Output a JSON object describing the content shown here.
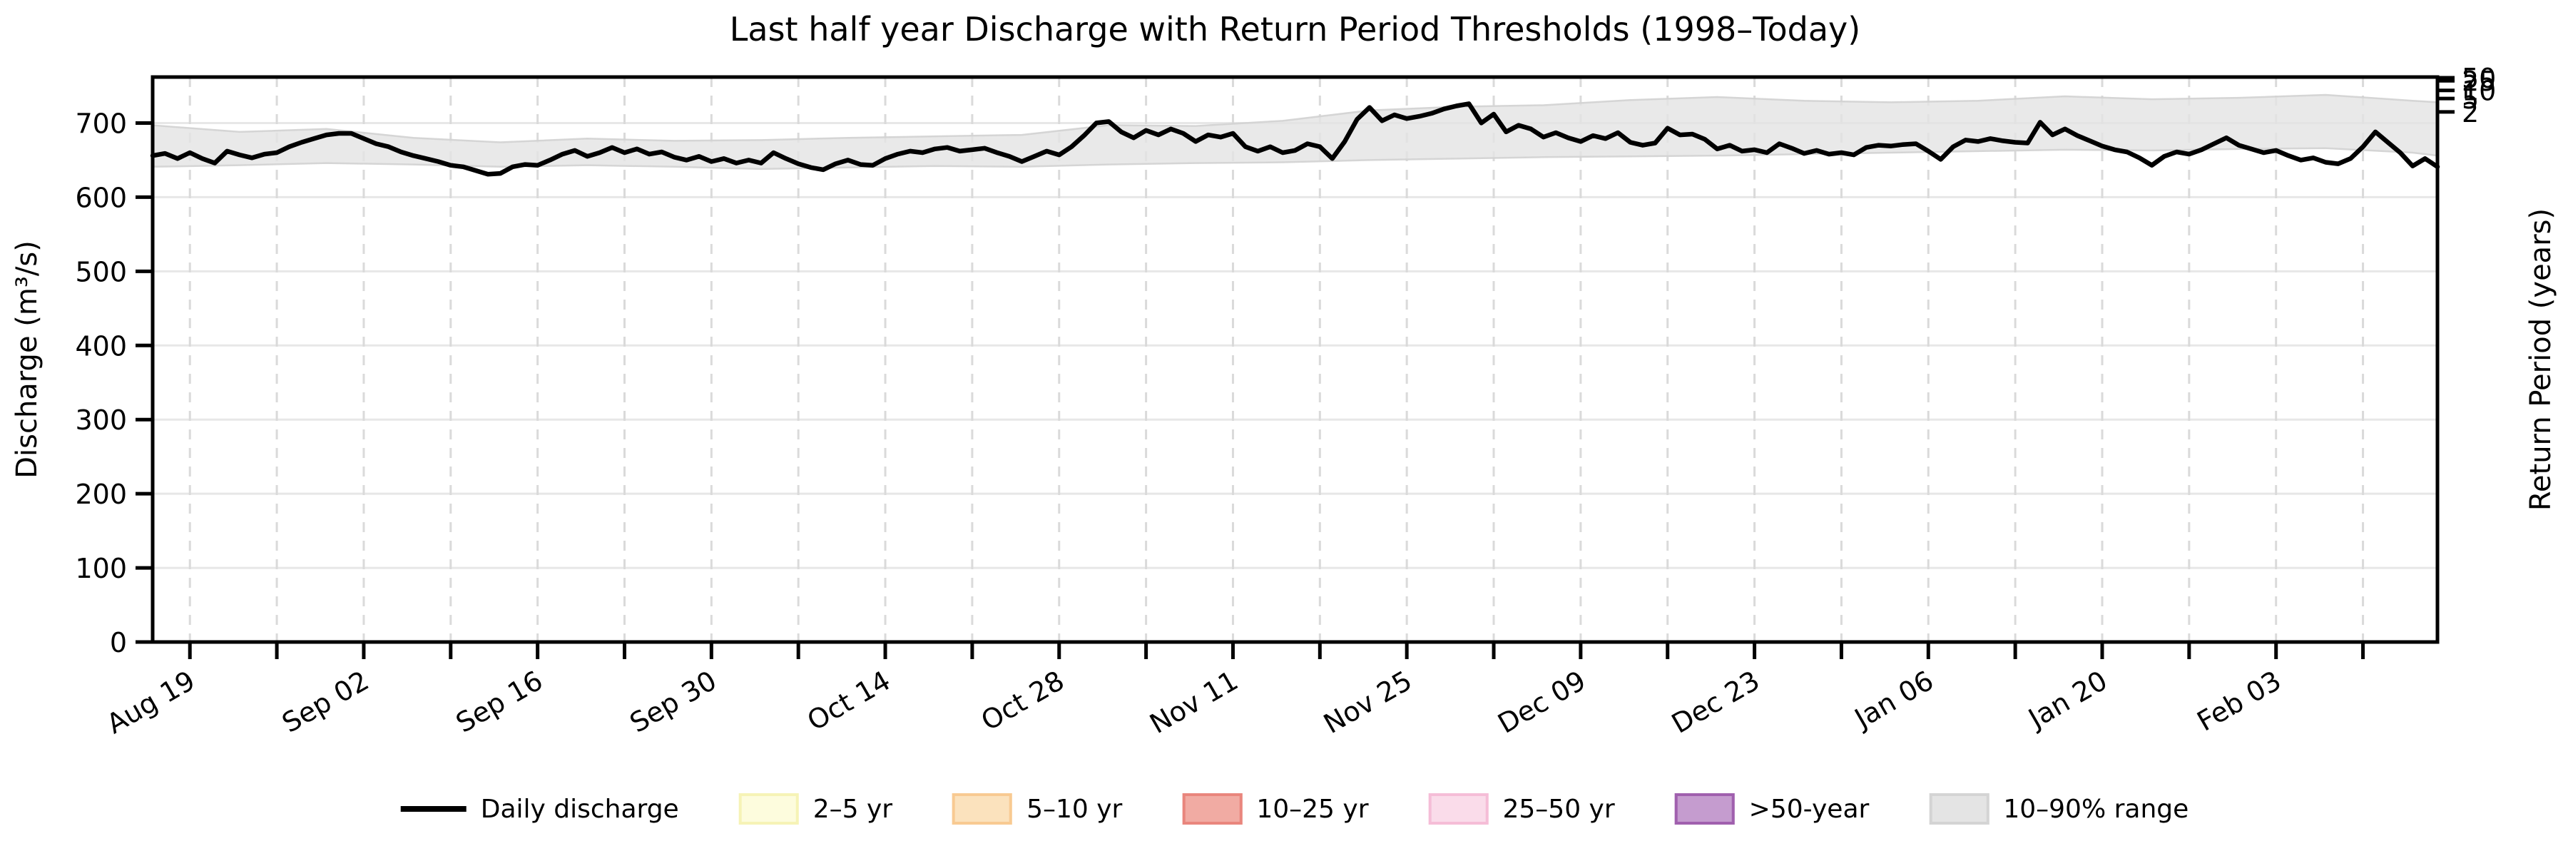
{
  "chart_data": {
    "type": "line",
    "title": "Last half year Discharge with Return Period Thresholds (1998–Today)",
    "ylabel": "Discharge (m³/s)",
    "y2label": "Return Period (years)",
    "xlabel": "",
    "ylim": [
      0,
      762
    ],
    "grid": true,
    "legend_position": "bottom",
    "x_start": "Aug 16",
    "x_end": "Feb 16",
    "days_total": 184,
    "y_ticks": [
      0,
      100,
      200,
      300,
      400,
      500,
      600,
      700
    ],
    "x_ticks": {
      "days": [
        3,
        10,
        17,
        24,
        31,
        38,
        45,
        52,
        59,
        66,
        73,
        80,
        87,
        94,
        101,
        108,
        115,
        122,
        129,
        136,
        143,
        150,
        157,
        164,
        171,
        178
      ],
      "labels": [
        "Aug 19",
        "",
        "Sep 02",
        "",
        "Sep 16",
        "",
        "Sep 30",
        "",
        "Oct 14",
        "",
        "Oct 28",
        "",
        "Nov 11",
        "",
        "Nov 25",
        "",
        "Dec 09",
        "",
        "Dec 23",
        "",
        "Jan 06",
        "",
        "Jan 20",
        "",
        "Feb 03",
        ""
      ]
    },
    "right_ticks": [
      {
        "label": "2",
        "value": 715
      },
      {
        "label": "5",
        "value": 733
      },
      {
        "label": "10",
        "value": 744
      },
      {
        "label": "25",
        "value": 757
      },
      {
        "label": "50",
        "value": 761
      }
    ],
    "series": [
      {
        "name": "Daily discharge",
        "values": [
          656,
          659,
          652,
          660,
          652,
          646,
          662,
          657,
          653,
          658,
          660,
          668,
          674,
          679,
          684,
          686,
          686,
          679,
          672,
          668,
          661,
          656,
          652,
          648,
          643,
          641,
          636,
          631,
          632,
          641,
          644,
          643,
          650,
          658,
          663,
          655,
          660,
          667,
          660,
          665,
          658,
          661,
          654,
          650,
          655,
          648,
          652,
          646,
          650,
          646,
          660,
          652,
          645,
          640,
          637,
          645,
          650,
          644,
          643,
          652,
          658,
          662,
          660,
          665,
          667,
          662,
          664,
          666,
          660,
          655,
          648,
          655,
          662,
          657,
          668,
          683,
          700,
          702,
          688,
          680,
          690,
          684,
          692,
          686,
          675,
          684,
          681,
          686,
          668,
          662,
          668,
          660,
          663,
          672,
          668,
          652,
          675,
          705,
          721,
          703,
          711,
          706,
          709,
          713,
          719,
          723,
          726,
          700,
          712,
          688,
          697,
          692,
          681,
          687,
          680,
          675,
          683,
          679,
          687,
          674,
          670,
          673,
          693,
          684,
          685,
          678,
          665,
          670,
          662,
          664,
          660,
          672,
          666,
          659,
          663,
          658,
          660,
          657,
          667,
          670,
          669,
          671,
          672,
          662,
          651,
          668,
          677,
          675,
          679,
          676,
          674,
          673,
          701,
          684,
          692,
          683,
          676,
          669,
          664,
          661,
          653,
          643,
          655,
          661,
          658,
          664,
          672,
          680,
          670,
          665,
          660,
          663,
          656,
          650,
          653,
          647,
          645,
          652,
          668,
          688,
          674,
          660,
          642,
          652,
          641
        ]
      }
    ],
    "band": {
      "name": "10–90% range",
      "days": [
        0,
        7,
        14,
        21,
        28,
        35,
        42,
        49,
        56,
        63,
        70,
        77,
        84,
        91,
        98,
        105,
        112,
        119,
        126,
        133,
        140,
        147,
        154,
        161,
        168,
        175,
        182,
        184
      ],
      "p10": [
        641,
        643,
        646,
        644,
        641,
        643,
        641,
        638,
        640,
        642,
        641,
        644,
        646,
        647,
        650,
        652,
        654,
        655,
        656,
        658,
        660,
        662,
        664,
        663,
        665,
        666,
        660,
        656
      ],
      "p90": [
        697,
        688,
        692,
        680,
        674,
        679,
        676,
        677,
        680,
        682,
        684,
        697,
        696,
        703,
        717,
        722,
        724,
        731,
        735,
        730,
        728,
        730,
        736,
        732,
        734,
        738,
        730,
        728
      ]
    },
    "thresholds": [
      {
        "band": "2–5 yr",
        "from_years": 2,
        "to_years": 5
      },
      {
        "band": "5–10 yr",
        "from_years": 5,
        "to_years": 10
      },
      {
        "band": "10–25 yr",
        "from_years": 10,
        "to_years": 25
      },
      {
        "band": "25–50 yr",
        "from_years": 25,
        "to_years": 50
      },
      {
        "band": ">50-year",
        "from_years": 50,
        "to_years": null
      }
    ]
  },
  "legend": {
    "items": [
      {
        "label": "Daily discharge",
        "type": "line",
        "color": "#000000"
      },
      {
        "label": "2–5 yr",
        "type": "patch",
        "fill": "#fdfcdd",
        "edge": "#f6f3b6"
      },
      {
        "label": "5–10 yr",
        "type": "patch",
        "fill": "#fbe2bd",
        "edge": "#f8ca92"
      },
      {
        "label": "10–25 yr",
        "type": "patch",
        "fill": "#f1aba3",
        "edge": "#e9867d"
      },
      {
        "label": "25–50 yr",
        "type": "patch",
        "fill": "#fadcea",
        "edge": "#f5bdd7"
      },
      {
        "label": ">50-year",
        "type": "patch",
        "fill": "#c59ccf",
        "edge": "#a060ae"
      },
      {
        "label": "10–90% range",
        "type": "patch",
        "fill": "#e4e4e4",
        "edge": "#d4d4d4"
      }
    ]
  },
  "colors": {
    "line": "#000000",
    "band_fill": "#e3e3e3",
    "band_edge": "#d2d2d2",
    "grid_horizontal": "#e7e7e7",
    "grid_vertical": "#dadada",
    "spine": "#000000"
  }
}
